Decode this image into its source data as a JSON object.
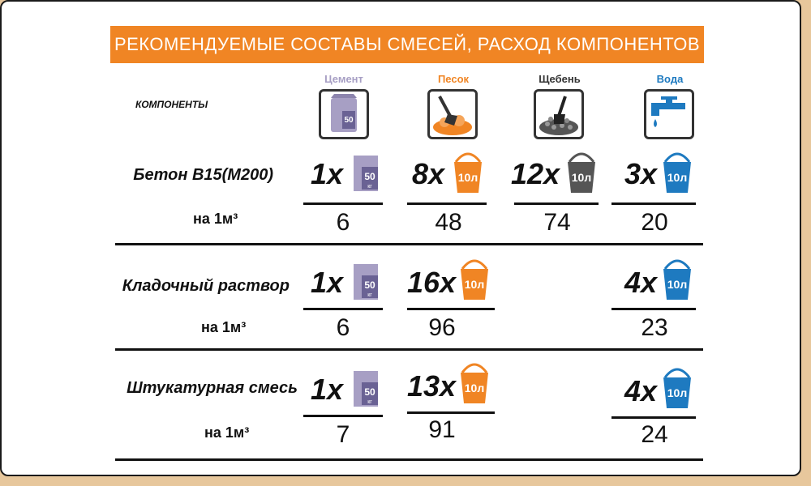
{
  "title": "РЕКОМЕНДУЕМЫЕ СОСТАВЫ СМЕСЕЙ, РАСХОД КОМПОНЕНТОВ",
  "components_label": "КОМПОНЕНТЫ",
  "columns": [
    {
      "name": "Цемент",
      "color": "#a79fc4",
      "icon": "cement-bag-icon"
    },
    {
      "name": "Песок",
      "color": "#f08524",
      "icon": "sand-shovel-icon"
    },
    {
      "name": "Щебень",
      "color": "#444444",
      "icon": "gravel-shovel-icon"
    },
    {
      "name": "Вода",
      "color": "#1e7ac0",
      "icon": "water-tap-icon"
    }
  ],
  "bag_label": {
    "amount": "50",
    "unit": "кг"
  },
  "bucket_label": "10л",
  "per_m3": "на 1м³",
  "rows": [
    {
      "title": "Бетон В15(М200)",
      "cement": {
        "mult": "1х",
        "value": "6"
      },
      "sand": {
        "mult": "8х",
        "value": "48"
      },
      "gravel": {
        "mult": "12х",
        "value": "74"
      },
      "water": {
        "mult": "3х",
        "value": "20"
      }
    },
    {
      "title": "Кладочный раствор",
      "cement": {
        "mult": "1х",
        "value": "6"
      },
      "sand": {
        "mult": "16х",
        "value": "96"
      },
      "water": {
        "mult": "4х",
        "value": "23"
      }
    },
    {
      "title": "Штукатурная смесь",
      "cement": {
        "mult": "1х",
        "value": "7"
      },
      "sand": {
        "mult": "13х",
        "value": "91"
      },
      "water": {
        "mult": "4х",
        "value": "24"
      }
    }
  ]
}
